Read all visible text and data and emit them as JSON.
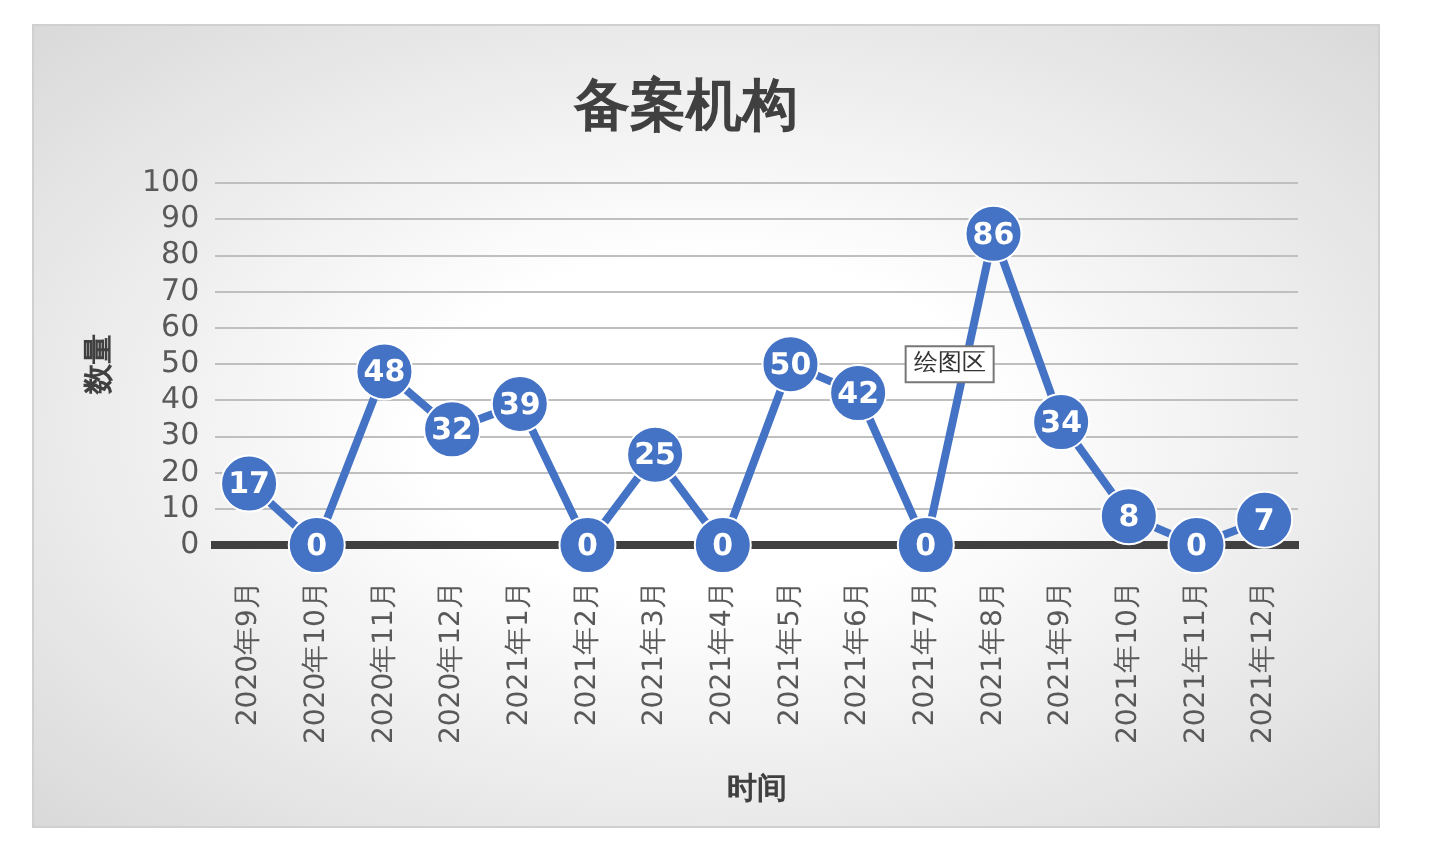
{
  "chart_data": {
    "type": "line",
    "title": "备案机构",
    "xlabel": "时间",
    "ylabel": "数量",
    "categories": [
      "2020年9月",
      "2020年10月",
      "2020年11月",
      "2020年12月",
      "2021年1月",
      "2021年2月",
      "2021年3月",
      "2021年4月",
      "2021年5月",
      "2021年6月",
      "2021年7月",
      "2021年8月",
      "2021年9月",
      "2021年10月",
      "2021年11月",
      "2021年12月"
    ],
    "series": [
      {
        "color": "#4472c4",
        "values": [
          17,
          0,
          48,
          32,
          39,
          0,
          25,
          0,
          50,
          42,
          0,
          86,
          34,
          8,
          0,
          7
        ]
      }
    ],
    "ylim": [
      0,
      100
    ],
    "yticks": [
      0,
      10,
      20,
      30,
      40,
      50,
      60,
      70,
      80,
      90,
      100
    ],
    "grid": "y",
    "legend": false,
    "marker": "circle",
    "line_style": "solid",
    "data_labels": true,
    "annotations": [
      "绘图区"
    ]
  }
}
